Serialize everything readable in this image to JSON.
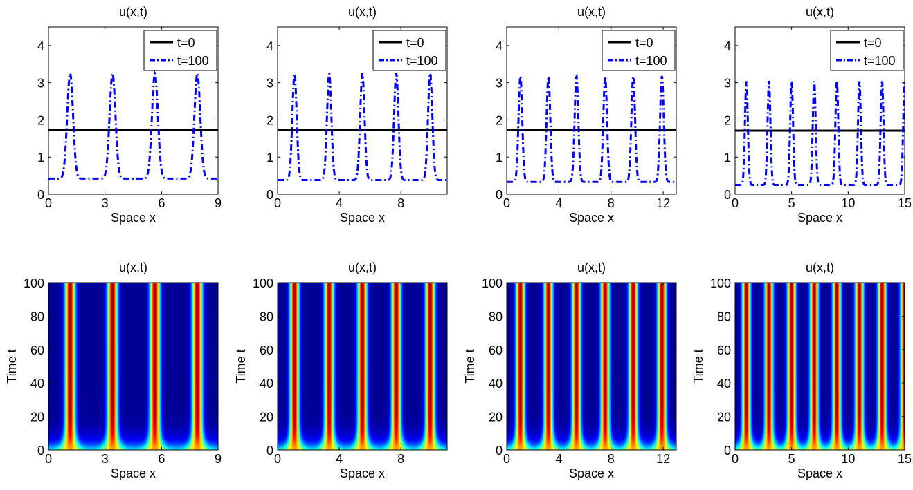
{
  "chart_data": [
    {
      "type": "line",
      "title": "u(x,t)",
      "xlabel": "Space x",
      "ylabel": "",
      "xlim": [
        0,
        9
      ],
      "ylim": [
        0,
        4.5
      ],
      "xticks": [
        0,
        3,
        6,
        9
      ],
      "yticks": [
        0,
        1,
        2,
        3,
        4
      ],
      "series": [
        {
          "name": "t=0",
          "style": "solid",
          "color": "#000000",
          "constant": 1.73
        },
        {
          "name": "t=100",
          "style": "dashdot",
          "color": "#0000ff",
          "baseline": 0.42,
          "peak": 3.25,
          "peaks_x": [
            1.15,
            3.4,
            5.65,
            7.9
          ],
          "width": 0.22
        }
      ],
      "legend": "top-right"
    },
    {
      "type": "line",
      "title": "u(x,t)",
      "xlabel": "Space x",
      "ylabel": "",
      "xlim": [
        0,
        11
      ],
      "ylim": [
        0,
        4.5
      ],
      "xticks": [
        0,
        4,
        8
      ],
      "yticks": [
        0,
        1,
        2,
        3,
        4
      ],
      "series": [
        {
          "name": "t=0",
          "style": "solid",
          "color": "#000000",
          "constant": 1.73
        },
        {
          "name": "t=100",
          "style": "dashdot",
          "color": "#0000ff",
          "baseline": 0.38,
          "peak": 3.25,
          "peaks_x": [
            1.1,
            3.35,
            5.5,
            7.7,
            9.9
          ],
          "width": 0.2
        }
      ],
      "legend": "top-right"
    },
    {
      "type": "line",
      "title": "u(x,t)",
      "xlabel": "Space x",
      "ylabel": "",
      "xlim": [
        0,
        13
      ],
      "ylim": [
        0,
        4.5
      ],
      "xticks": [
        0,
        4,
        8,
        12
      ],
      "yticks": [
        0,
        1,
        2,
        3,
        4
      ],
      "series": [
        {
          "name": "t=0",
          "style": "solid",
          "color": "#000000",
          "constant": 1.73
        },
        {
          "name": "t=100",
          "style": "dashdot",
          "color": "#0000ff",
          "baseline": 0.33,
          "peak": 3.18,
          "peaks_x": [
            1.05,
            3.2,
            5.35,
            7.55,
            9.7,
            11.9
          ],
          "width": 0.2
        }
      ],
      "legend": "top-right"
    },
    {
      "type": "line",
      "title": "u(x,t)",
      "xlabel": "Space x",
      "ylabel": "",
      "xlim": [
        0,
        15
      ],
      "ylim": [
        0,
        4.5
      ],
      "xticks": [
        0,
        5,
        10,
        15
      ],
      "yticks": [
        0,
        1,
        2,
        3,
        4
      ],
      "series": [
        {
          "name": "t=0",
          "style": "solid",
          "color": "#000000",
          "constant": 1.71
        },
        {
          "name": "t=100",
          "style": "dashdot",
          "color": "#0000ff",
          "baseline": 0.25,
          "peak": 3.05,
          "peaks_x": [
            1.0,
            3.0,
            5.0,
            7.0,
            9.0,
            11.0,
            13.0,
            15.0
          ],
          "width": 0.18
        }
      ],
      "legend": "top-right"
    },
    {
      "type": "heatmap",
      "title": "u(x,t)",
      "xlabel": "Space x",
      "ylabel": "Time t",
      "xlim": [
        0,
        9
      ],
      "ylim": [
        0,
        100
      ],
      "xticks": [
        0,
        3,
        6,
        9
      ],
      "yticks": [
        0,
        20,
        40,
        60,
        80,
        100
      ],
      "stripes_x": [
        1.15,
        3.4,
        5.65,
        7.9
      ],
      "colormap": "jet"
    },
    {
      "type": "heatmap",
      "title": "u(x,t)",
      "xlabel": "Space x",
      "ylabel": "Time t",
      "xlim": [
        0,
        11
      ],
      "ylim": [
        0,
        100
      ],
      "xticks": [
        0,
        4,
        8
      ],
      "yticks": [
        0,
        20,
        40,
        60,
        80,
        100
      ],
      "stripes_x": [
        1.1,
        3.35,
        5.5,
        7.7,
        9.9
      ],
      "colormap": "jet"
    },
    {
      "type": "heatmap",
      "title": "u(x,t)",
      "xlabel": "Space x",
      "ylabel": "Time t",
      "xlim": [
        0,
        13
      ],
      "ylim": [
        0,
        100
      ],
      "xticks": [
        0,
        4,
        8,
        12
      ],
      "yticks": [
        0,
        20,
        40,
        60,
        80,
        100
      ],
      "stripes_x": [
        1.05,
        3.2,
        5.35,
        7.55,
        9.7,
        11.9
      ],
      "colormap": "jet"
    },
    {
      "type": "heatmap",
      "title": "u(x,t)",
      "xlabel": "Space x",
      "ylabel": "Time t",
      "xlim": [
        0,
        15
      ],
      "ylim": [
        0,
        100
      ],
      "xticks": [
        0,
        5,
        10,
        15
      ],
      "yticks": [
        0,
        20,
        40,
        60,
        80,
        100
      ],
      "stripes_x": [
        1.0,
        3.0,
        5.0,
        7.0,
        9.0,
        11.0,
        13.0,
        15.0
      ],
      "colormap": "jet"
    }
  ]
}
